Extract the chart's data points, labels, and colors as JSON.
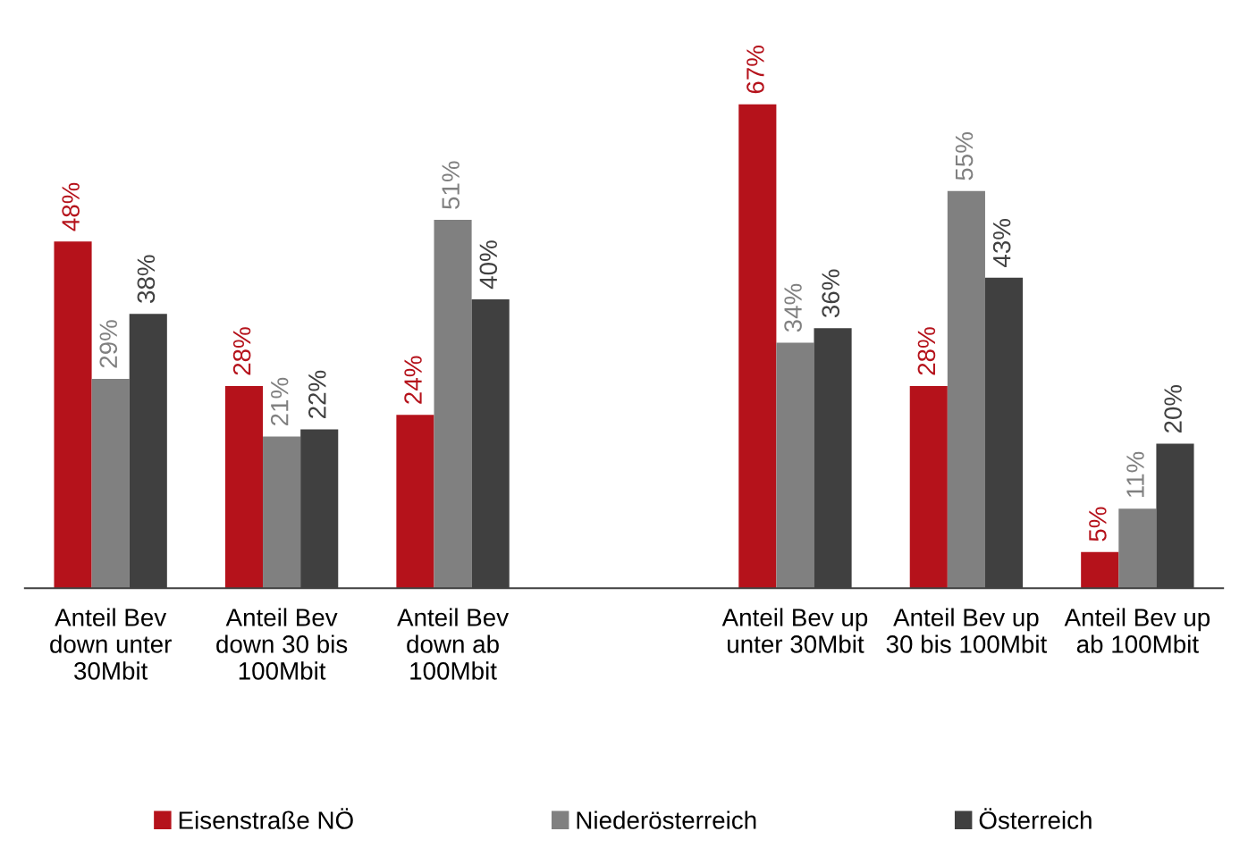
{
  "chart_data": {
    "type": "bar",
    "categories": [
      "Anteil Bev down unter 30Mbit",
      "Anteil Bev down 30 bis 100Mbit",
      "Anteil Bev down ab 100Mbit",
      null,
      "Anteil Bev up unter 30Mbit",
      "Anteil Bev up 30 bis 100Mbit",
      "Anteil Bev up ab 100Mbit"
    ],
    "series": [
      {
        "name": "Eisenstraße NÖ",
        "color": "#b5121b",
        "values": [
          48,
          28,
          24,
          null,
          67,
          28,
          5
        ],
        "value_labels": [
          "48%",
          "28%",
          "24%",
          null,
          "67%",
          "28%",
          "5%"
        ]
      },
      {
        "name": "Niederösterreich",
        "color": "#808080",
        "values": [
          29,
          21,
          51,
          null,
          34,
          55,
          11
        ],
        "value_labels": [
          "29%",
          "21%",
          "51%",
          null,
          "34%",
          "55%",
          "11%"
        ]
      },
      {
        "name": "Österreich",
        "color": "#404040",
        "values": [
          38,
          22,
          40,
          null,
          36,
          43,
          20
        ],
        "value_labels": [
          "38%",
          "22%",
          "40%",
          null,
          "36%",
          "43%",
          "20%"
        ]
      }
    ],
    "legend": "bottom",
    "grid": false
  }
}
